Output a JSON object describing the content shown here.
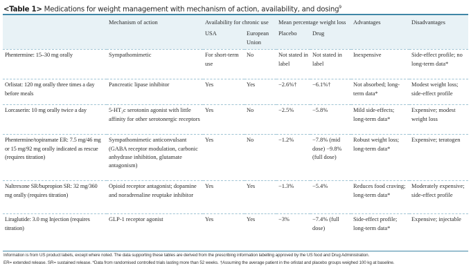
{
  "caption": {
    "label": "<Table 1>",
    "title": "Medications for weight management with mechanism of action, availability, and dosing",
    "ref": "9"
  },
  "headers": {
    "drug": "",
    "mechanism": "Mechanism of action",
    "availability": "Availability for chronic use",
    "usa": "USA",
    "eu": "European Union",
    "weight_loss": "Mean percentage weight loss",
    "placebo": "Placebo",
    "drug_col": "Drug",
    "advantages": "Advantages",
    "disadvantages": "Disadvantages"
  },
  "rows": [
    {
      "drug": "Phentermine: 15–30 mg orally",
      "mechanism": "Sympathomimetic",
      "usa": "For short-term use",
      "eu": "No",
      "placebo": "Not stated in label",
      "drug_loss": "Not stated in label",
      "advantages": "Inexpensive",
      "disadvantages": "Side-effect profile; no long-term data*"
    },
    {
      "drug": "Orlistat: 120 mg orally three times a day before meals",
      "mechanism": "Pancreatic lipase inhibitor",
      "usa": "Yes",
      "eu": "Yes",
      "placebo": "−2.6%†",
      "drug_loss": "−6.1%†",
      "advantages": "Not absorbed; long-term data*",
      "disadvantages": "Modest weight loss; side-effect profile"
    },
    {
      "drug": "Lorcaserin: 10 mg orally twice a day",
      "mechanism": "5-HT₂c serotonin agonist with little affinity for other serotonergic receptors",
      "usa": "Yes",
      "eu": "No",
      "placebo": "−2.5%",
      "drug_loss": "−5.8%",
      "advantages": "Mild side-effects; long-term data*",
      "disadvantages": "Expensive; modest weight loss"
    },
    {
      "drug": "Phentermine/topiramate ER: 7.5 mg/46 mg or 15 mg/92 mg orally indicated as rescue (requires titration)",
      "mechanism": "Sympathomimetic anticonvulsant (GABA receptor modulation, carbonic anhydrase inhibition, glutamate antagonism)",
      "usa": "Yes",
      "eu": "No",
      "placebo": "−1.2%",
      "drug_loss": "−7.8% (mid dose) −9.8% (full dose)",
      "advantages": "Robust weight loss; long-term data*",
      "disadvantages": "Expensive; teratogen"
    },
    {
      "drug": "Naltrexone SR/bupropion SR: 32 mg/360 mg orally (requires titration)",
      "mechanism": "Opioid receptor antagonist; dopamine and noradrenaline reuptake inhibitor",
      "usa": "Yes",
      "eu": "Yes",
      "placebo": "−1.3%",
      "drug_loss": "−5.4%",
      "advantages": "Reduces food craving; long-term data*",
      "disadvantages": "Moderately expensive; side-effect profile"
    },
    {
      "drug": "Liraglutide: 3.0 mg Injection (requires titration)",
      "mechanism": "GLP-1 receptor agonist",
      "usa": "Yes",
      "eu": "Yes",
      "placebo": "−3%",
      "drug_loss": "−7.4% (full dose)",
      "advantages": "Side-effect profile; long-term data*",
      "disadvantages": "Expensive; injectable"
    }
  ],
  "footer": [
    "Information is from US product labels, except where noted. The data supporting these tables are derived from the prescribing information labelling approved by the US food and Drug Administration.",
    "ER= extended release. SR= sustained release. *Data from randomised controlled trials lasting more than 52 weeks. †Assuming the average patient in the orlistat and placebo groups weighed 100 kg at baseline."
  ]
}
